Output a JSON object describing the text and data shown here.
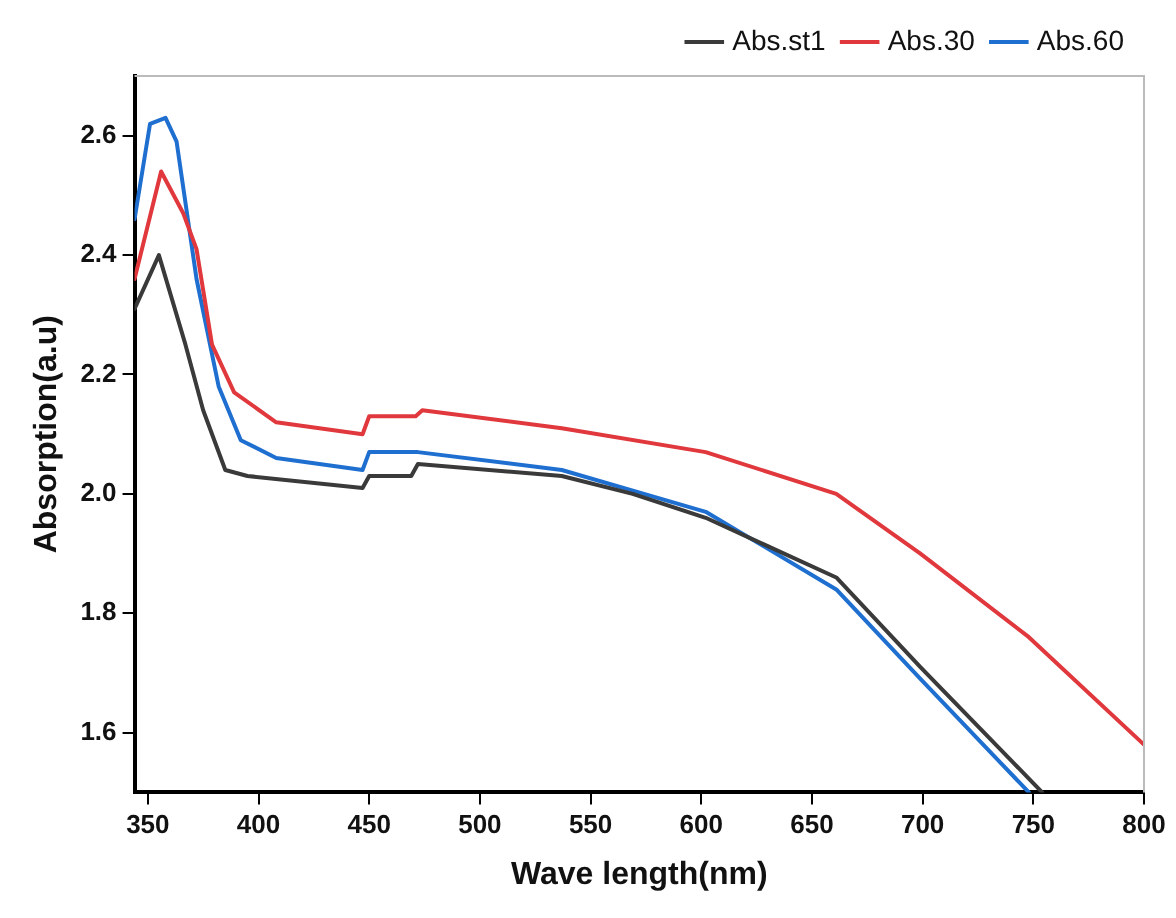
{
  "chart_data": {
    "type": "line",
    "xlabel": "Wave length(nm)",
    "ylabel": "Absorption(a.u)",
    "xlim": [
      344,
      800
    ],
    "ylim": [
      1.5,
      2.7
    ],
    "xticks": [
      350,
      400,
      450,
      500,
      550,
      600,
      650,
      700,
      750,
      800
    ],
    "yticks": [
      {
        "value": 1.6,
        "label": "1.6"
      },
      {
        "value": 1.8,
        "label": "1.8"
      },
      {
        "value": 2.0,
        "label": "2.0"
      },
      {
        "value": 2.2,
        "label": "2.2"
      },
      {
        "value": 2.4,
        "label": "2.4"
      },
      {
        "value": 2.6,
        "label": "2.6"
      }
    ],
    "grid": false,
    "legend": "top right",
    "marker": "none",
    "line_style": "solid",
    "series": [
      {
        "name": "Abs.st1",
        "color": "#3a3a3a",
        "x": [
          344,
          355,
          367,
          375,
          385,
          395,
          447,
          450,
          469,
          472,
          537,
          569,
          602,
          661,
          699,
          754
        ],
        "values": [
          2.31,
          2.4,
          2.25,
          2.14,
          2.04,
          2.03,
          2.01,
          2.03,
          2.03,
          2.05,
          2.03,
          2.0,
          1.96,
          1.86,
          1.71,
          1.5
        ]
      },
      {
        "name": "Abs.30",
        "color": "#e0383c",
        "x": [
          344,
          356,
          366,
          372,
          379,
          389,
          408,
          447,
          450,
          471,
          474,
          537,
          602,
          661,
          699,
          748,
          800
        ],
        "values": [
          2.36,
          2.54,
          2.47,
          2.41,
          2.25,
          2.17,
          2.12,
          2.1,
          2.13,
          2.13,
          2.14,
          2.11,
          2.07,
          2.0,
          1.9,
          1.76,
          1.58
        ]
      },
      {
        "name": "Abs.60",
        "color": "#1f6fd0",
        "x": [
          344,
          351,
          358,
          363,
          372,
          382,
          392,
          408,
          447,
          450,
          472,
          537,
          602,
          661,
          699,
          748
        ],
        "values": [
          2.46,
          2.62,
          2.63,
          2.59,
          2.36,
          2.18,
          2.09,
          2.06,
          2.04,
          2.07,
          2.07,
          2.04,
          1.97,
          1.84,
          1.69,
          1.5
        ]
      }
    ]
  }
}
